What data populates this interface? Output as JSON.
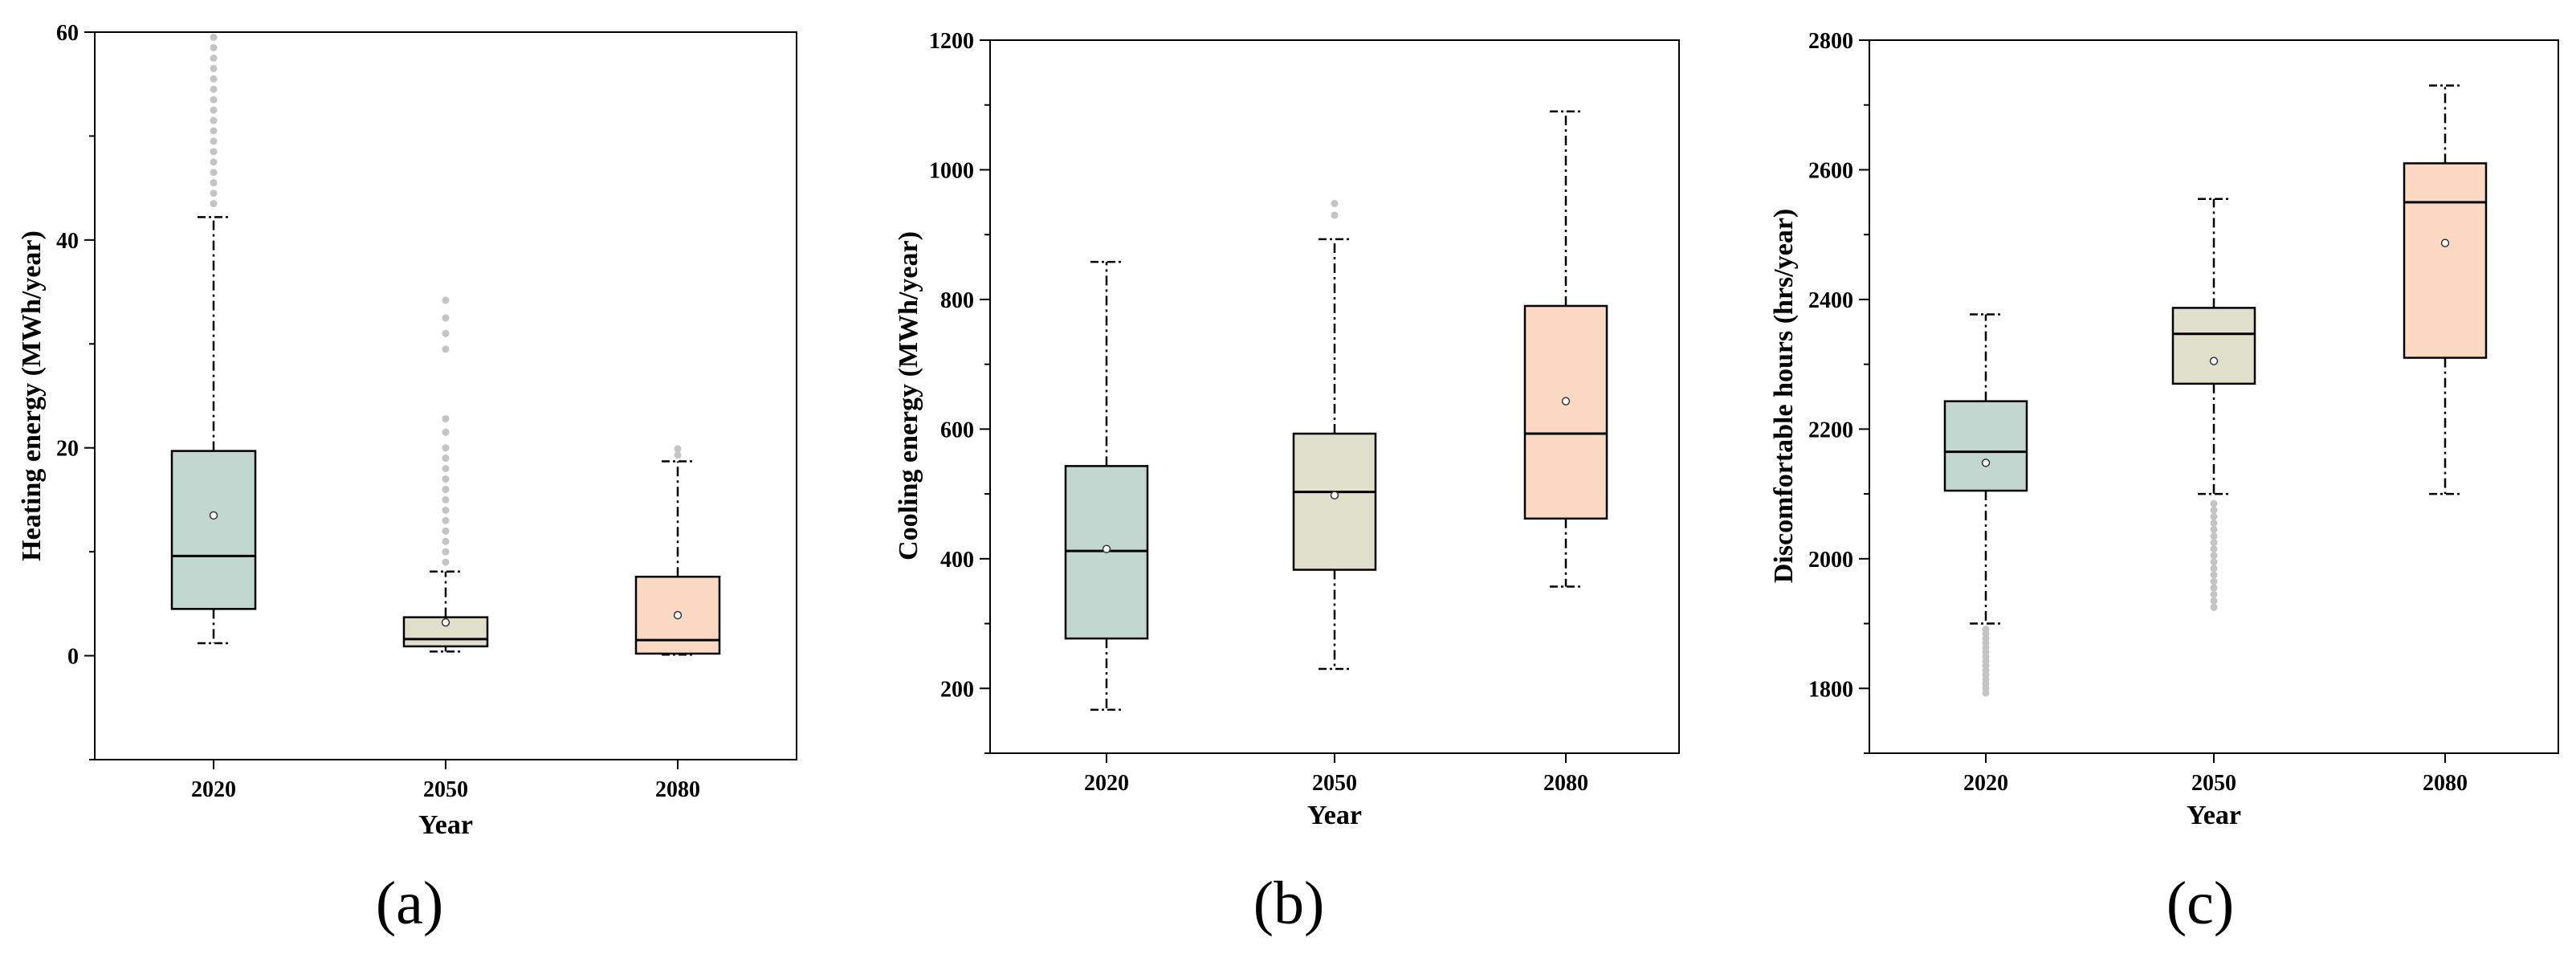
{
  "colors": {
    "2020": "#c2d7d0",
    "2050": "#e0dfcb",
    "2080": "#fbd9c3",
    "outlier": "#c4c4c4",
    "axis": "#000000"
  },
  "chart_data": [
    {
      "type": "box",
      "panel_label": "(a)",
      "title": "",
      "xlabel": "Year",
      "ylabel": "Heating energy (MWh/year)",
      "categories": [
        "2020",
        "2050",
        "2080"
      ],
      "ylim": [
        -10,
        60
      ],
      "yticks": [
        0,
        20,
        40,
        60
      ],
      "ytick_labels": [
        "0",
        "20",
        "40",
        "60"
      ],
      "minor_yticks": [
        -10,
        10,
        30,
        50
      ],
      "boxes": [
        {
          "category": "2020",
          "whisker_low": 1.2,
          "q1": 4.5,
          "median": 9.6,
          "q3": 19.7,
          "whisker_high": 42.2,
          "mean": 13.5,
          "outliers": [
            43.5,
            44.5,
            45.5,
            46.5,
            47.5,
            48.5,
            49.5,
            50.5,
            51.5,
            52.5,
            53.5,
            54.5,
            55.5,
            56.5,
            57.5,
            58.5,
            59.5
          ]
        },
        {
          "category": "2050",
          "whisker_low": 0.4,
          "q1": 0.9,
          "median": 1.6,
          "q3": 3.7,
          "whisker_high": 8.1,
          "mean": 3.2,
          "outliers": [
            9,
            10,
            11,
            12,
            13,
            14,
            15,
            16,
            17,
            18,
            19,
            20,
            21.5,
            22.8,
            29.5,
            31,
            32.5,
            34.2
          ]
        },
        {
          "category": "2080",
          "whisker_low": 0.1,
          "q1": 0.2,
          "median": 1.5,
          "q3": 7.6,
          "whisker_high": 18.7,
          "mean": 3.9,
          "outliers": [
            19.3,
            19.9
          ]
        }
      ]
    },
    {
      "type": "box",
      "panel_label": "(b)",
      "title": "",
      "xlabel": "Year",
      "ylabel": "Cooling energy (MWh/year)",
      "categories": [
        "2020",
        "2050",
        "2080"
      ],
      "ylim": [
        100,
        1200
      ],
      "yticks": [
        200,
        400,
        600,
        800,
        1000,
        1200
      ],
      "ytick_labels": [
        "200",
        "400",
        "600",
        "800",
        "1000",
        "1200"
      ],
      "minor_yticks": [
        100,
        300,
        500,
        700,
        900,
        1100
      ],
      "boxes": [
        {
          "category": "2020",
          "whisker_low": 167,
          "q1": 277,
          "median": 412,
          "q3": 543,
          "whisker_high": 858,
          "mean": 415,
          "outliers": []
        },
        {
          "category": "2050",
          "whisker_low": 230,
          "q1": 383,
          "median": 503,
          "q3": 593,
          "whisker_high": 893,
          "mean": 498,
          "outliers": [
            930,
            948
          ]
        },
        {
          "category": "2080",
          "whisker_low": 357,
          "q1": 462,
          "median": 593,
          "q3": 790,
          "whisker_high": 1090,
          "mean": 643,
          "outliers": []
        }
      ]
    },
    {
      "type": "box",
      "panel_label": "(c)",
      "title": "",
      "xlabel": "Year",
      "ylabel": "Discomfortable hours (hrs/year)",
      "categories": [
        "2020",
        "2050",
        "2080"
      ],
      "ylim": [
        1700,
        2800
      ],
      "yticks": [
        1800,
        2000,
        2200,
        2400,
        2600,
        2800
      ],
      "ytick_labels": [
        "1800",
        "2000",
        "2200",
        "2400",
        "2600",
        "2800"
      ],
      "minor_yticks": [
        1700,
        1900,
        2100,
        2300,
        2500,
        2700
      ],
      "boxes": [
        {
          "category": "2020",
          "whisker_low": 1900,
          "q1": 2105,
          "median": 2165,
          "q3": 2243,
          "whisker_high": 2377,
          "mean": 2148,
          "outliers": [
            1793,
            1800,
            1807,
            1814,
            1821,
            1828,
            1835,
            1842,
            1849,
            1856,
            1863,
            1870,
            1877,
            1884,
            1891
          ]
        },
        {
          "category": "2050",
          "whisker_low": 2100,
          "q1": 2270,
          "median": 2347,
          "q3": 2387,
          "whisker_high": 2555,
          "mean": 2305,
          "outliers": [
            1925,
            1935,
            1945,
            1955,
            1965,
            1975,
            1985,
            1995,
            2005,
            2015,
            2025,
            2035,
            2045,
            2055,
            2065,
            2075,
            2085
          ]
        },
        {
          "category": "2080",
          "whisker_low": 2100,
          "q1": 2310,
          "median": 2550,
          "q3": 2610,
          "whisker_high": 2730,
          "mean": 2487,
          "outliers": []
        }
      ]
    }
  ]
}
